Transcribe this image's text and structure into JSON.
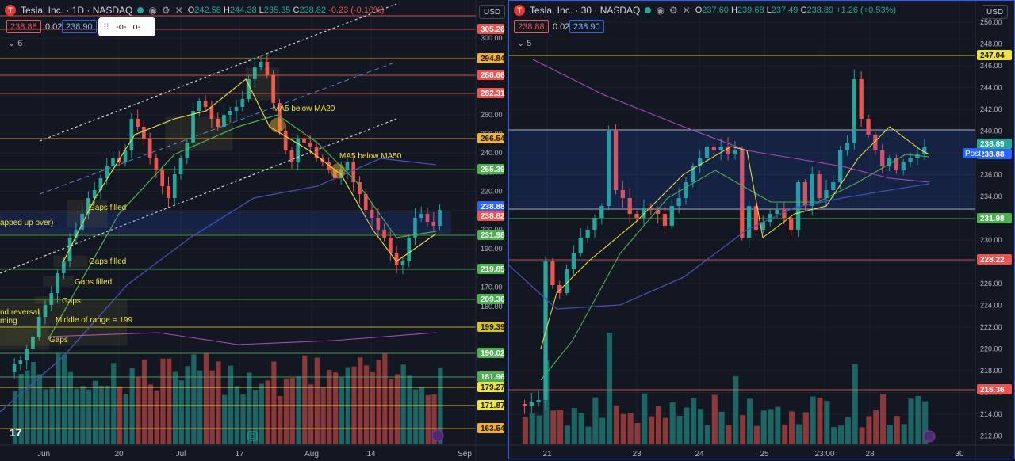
{
  "left": {
    "symbol": "Tesla, Inc. · 1D · NASDAQ",
    "logo": "T",
    "ohlc": {
      "o": "242.58",
      "h": "244.38",
      "l": "235.35",
      "c": "238.82",
      "chg": "-0.23 (-0.10%)"
    },
    "sell": "238.88",
    "spread": "0.02",
    "buy": "238.90",
    "indicators_count": "6",
    "currency": "USD",
    "x_ticks": [
      "Jun",
      "20",
      "Jul",
      "17",
      "Aug",
      "14",
      "Sep"
    ],
    "y_ticks": [
      "300.00",
      "290.00",
      "280.00",
      "270.00",
      "260.00",
      "250.00",
      "240.00",
      "230.00",
      "220.00",
      "210.00",
      "200.00",
      "190.00",
      "180.00",
      "170.00",
      "160.00"
    ],
    "level_labels": [
      {
        "text": "305.26",
        "color": "#ef5350"
      },
      {
        "text": "294.84",
        "color": "#f0b232"
      },
      {
        "text": "288.66",
        "color": "#ef5350"
      },
      {
        "text": "282.31",
        "color": "#ef5350"
      },
      {
        "text": "266.54",
        "color": "#f0b232"
      },
      {
        "text": "255.39",
        "color": "#4caf50"
      },
      {
        "text": "Post",
        "color": "#2962ff"
      },
      {
        "text": "238.88",
        "color": "#2962ff"
      },
      {
        "text": "238.82",
        "color": "#ef5350"
      },
      {
        "text": "231.98",
        "color": "#4caf50"
      },
      {
        "text": "219.85",
        "color": "#4caf50"
      },
      {
        "text": "209.36",
        "color": "#4caf50"
      },
      {
        "text": "199.39",
        "color": "#d4c22c"
      },
      {
        "text": "190.02",
        "color": "#4caf50"
      },
      {
        "text": "181.96",
        "color": "#4caf50"
      },
      {
        "text": "179.27",
        "color": "#f0e442"
      },
      {
        "text": "171.87",
        "color": "#f0e442"
      },
      {
        "text": "163.54",
        "color": "#f0b232"
      }
    ],
    "annotations": [
      "MA5 below MA20",
      "MA5 below MA50",
      "Gaps filled",
      "Gaps filled",
      "Gaps filled",
      "Gaps",
      "Gaps",
      "Middle of range = 199",
      "apped up over)",
      "nd reversal",
      "ming"
    ],
    "bottom_marker": "E"
  },
  "right": {
    "symbol": "Tesla, Inc. · 30 · NASDAQ",
    "logo": "T",
    "ohlc": {
      "o": "237.60",
      "h": "239.68",
      "l": "237.49",
      "c": "238.89",
      "chg": "+1.26 (+0.53%)"
    },
    "sell": "238.88",
    "spread": "0.02",
    "buy": "238.90",
    "indicators_count": "5",
    "currency": "USD",
    "x_ticks": [
      "21",
      "23",
      "24",
      "25",
      "23:00",
      "28",
      "30"
    ],
    "y_ticks": [
      "250.00",
      "248.00",
      "246.00",
      "244.00",
      "242.00",
      "240.00",
      "238.00",
      "236.00",
      "234.00",
      "232.00",
      "230.00",
      "228.00",
      "226.00",
      "224.00",
      "222.00",
      "220.00",
      "218.00",
      "216.00",
      "214.00",
      "212.00"
    ],
    "level_labels": [
      {
        "text": "247.04",
        "color": "#f0e442"
      },
      {
        "text": "Post",
        "color": "#2962ff"
      },
      {
        "text": "238.89",
        "color": "#26a69a"
      },
      {
        "text": "238.88",
        "color": "#2962ff"
      },
      {
        "text": "231.98",
        "color": "#4caf50"
      },
      {
        "text": "228.22",
        "color": "#ef5350"
      },
      {
        "text": "216.36",
        "color": "#ef5350"
      }
    ]
  },
  "icons": [
    "tesla-logo-icon",
    "indicator-dot-icon",
    "eye-icon",
    "gear-icon",
    "close-icon",
    "chevron-down-icon",
    "tradingview-logo-icon",
    "lightning-icon",
    "drag-handle-icon"
  ]
}
